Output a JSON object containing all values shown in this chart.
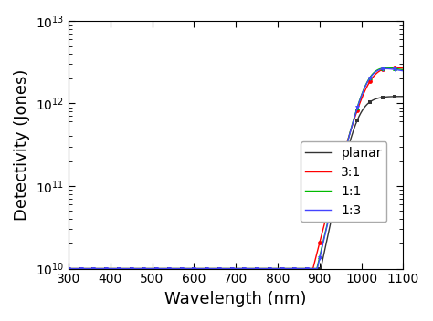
{
  "xlabel": "Wavelength (nm)",
  "ylabel": "Detectivity (Jones)",
  "xlim": [
    300,
    1100
  ],
  "ylim_log": [
    10,
    13
  ],
  "legend_labels": [
    "planar",
    "3:1",
    "1:1",
    "1:3"
  ],
  "colors": [
    "#333333",
    "#ff0000",
    "#00bb00",
    "#4444ff"
  ],
  "markers": [
    "s",
    "o",
    "^",
    "v"
  ],
  "markersizes": [
    3.5,
    3.5,
    3.5,
    3.5
  ],
  "background": "#ffffff",
  "tick_label_size": 10,
  "axis_label_size": 13,
  "legend_fontsize": 10
}
